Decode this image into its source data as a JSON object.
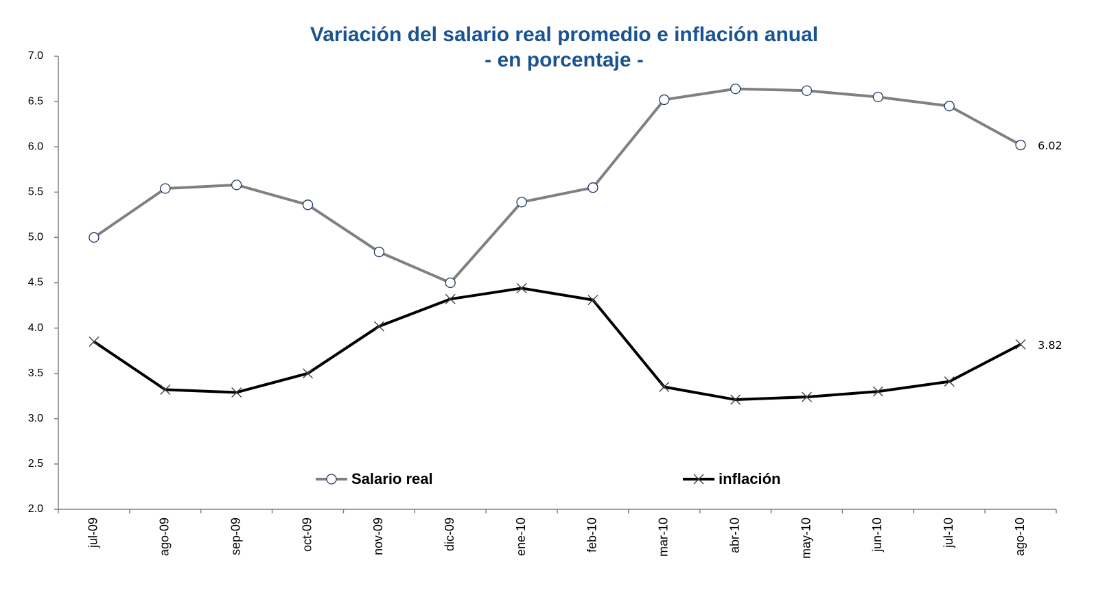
{
  "chart_data": {
    "type": "line",
    "title": "Variación del salario real promedio e inflación anual",
    "subtitle": "- en porcentaje -",
    "categories": [
      "jul-09",
      "ago-09",
      "sep-09",
      "oct-09",
      "nov-09",
      "dic-09",
      "ene-10",
      "feb-10",
      "mar-10",
      "abr-10",
      "may-10",
      "jun-10",
      "jul-10",
      "ago-10"
    ],
    "series": [
      {
        "name": "Salario real",
        "color": "#808080",
        "marker": "circle",
        "values": [
          5.0,
          5.54,
          5.58,
          5.36,
          4.84,
          4.5,
          5.39,
          5.55,
          6.52,
          6.64,
          6.62,
          6.55,
          6.45,
          6.02
        ]
      },
      {
        "name": "inflación",
        "color": "#000000",
        "marker": "x",
        "values": [
          3.85,
          3.32,
          3.29,
          3.5,
          4.02,
          4.32,
          4.44,
          4.31,
          3.35,
          3.21,
          3.24,
          3.3,
          3.41,
          3.82
        ]
      }
    ],
    "data_labels": "last",
    "ylim": [
      2.0,
      7.0
    ],
    "yticks": [
      {
        "value": 2,
        "label": "2.0"
      },
      2.5,
      {
        "value": 3,
        "label": "3.0"
      },
      3.5,
      {
        "value": 4,
        "label": "4.0"
      },
      4.5,
      {
        "value": 5,
        "label": "5.0"
      },
      5.5,
      {
        "value": 6,
        "label": "6.0"
      },
      6.5,
      {
        "value": 7,
        "label": "7.0"
      }
    ],
    "grid": false,
    "legend": "lower center"
  }
}
